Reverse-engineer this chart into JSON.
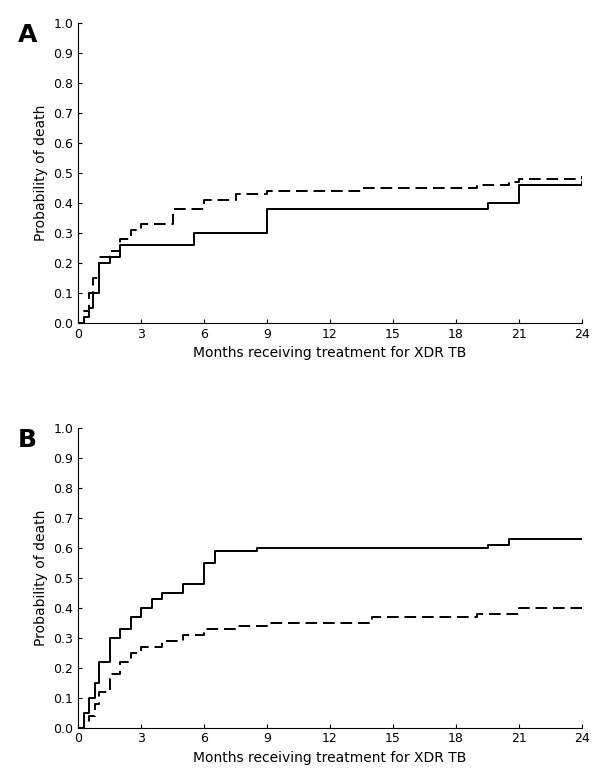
{
  "panel_A": {
    "title": "A",
    "solid_x": [
      0,
      0.3,
      0.5,
      0.7,
      1.0,
      1.5,
      2.0,
      5.5,
      9.0,
      13.5,
      19.5,
      21.0,
      24.0
    ],
    "solid_y": [
      0,
      0.02,
      0.05,
      0.1,
      0.2,
      0.22,
      0.26,
      0.3,
      0.38,
      0.38,
      0.4,
      0.46,
      0.47
    ],
    "dashed_x": [
      0,
      0.3,
      0.5,
      0.7,
      1.0,
      1.5,
      2.0,
      2.5,
      3.0,
      4.5,
      6.0,
      7.5,
      9.0,
      13.5,
      19.0,
      20.5,
      21.0,
      24.0
    ],
    "dashed_y": [
      0,
      0.04,
      0.1,
      0.15,
      0.22,
      0.24,
      0.28,
      0.31,
      0.33,
      0.38,
      0.41,
      0.43,
      0.44,
      0.45,
      0.46,
      0.47,
      0.48,
      0.49
    ],
    "ylabel": "Probability of death",
    "xlabel": "Months receiving treatment for XDR TB",
    "ylim": [
      0,
      1.0
    ],
    "xlim": [
      0,
      24
    ],
    "yticks": [
      0.0,
      0.1,
      0.2,
      0.3,
      0.4,
      0.5,
      0.6,
      0.7,
      0.8,
      0.9,
      1.0
    ],
    "xticks": [
      0,
      3,
      6,
      9,
      12,
      15,
      18,
      21,
      24
    ]
  },
  "panel_B": {
    "title": "B",
    "solid_x": [
      0,
      0.3,
      0.5,
      0.8,
      1.0,
      1.5,
      2.0,
      2.5,
      3.0,
      3.5,
      4.0,
      5.0,
      6.0,
      6.5,
      8.5,
      19.5,
      20.5,
      24.0
    ],
    "solid_y": [
      0,
      0.05,
      0.1,
      0.15,
      0.22,
      0.3,
      0.33,
      0.37,
      0.4,
      0.43,
      0.45,
      0.48,
      0.55,
      0.59,
      0.6,
      0.61,
      0.63,
      0.63
    ],
    "dashed_x": [
      0,
      0.3,
      0.5,
      0.8,
      1.0,
      1.5,
      2.0,
      2.5,
      3.0,
      4.0,
      5.0,
      6.0,
      7.5,
      9.0,
      14.0,
      19.0,
      21.0,
      24.0
    ],
    "dashed_y": [
      0,
      0.02,
      0.04,
      0.08,
      0.12,
      0.18,
      0.22,
      0.25,
      0.27,
      0.29,
      0.31,
      0.33,
      0.34,
      0.35,
      0.37,
      0.38,
      0.4,
      0.4
    ],
    "ylabel": "Probability of death",
    "xlabel": "Months receiving treatment for XDR TB",
    "ylim": [
      0,
      1.0
    ],
    "xlim": [
      0,
      24
    ],
    "yticks": [
      0.0,
      0.1,
      0.2,
      0.3,
      0.4,
      0.5,
      0.6,
      0.7,
      0.8,
      0.9,
      1.0
    ],
    "xticks": [
      0,
      3,
      6,
      9,
      12,
      15,
      18,
      21,
      24
    ]
  },
  "line_color": "#000000",
  "background_color": "#ffffff",
  "label_fontsize": 10,
  "tick_fontsize": 9,
  "panel_label_fontsize": 18,
  "linewidth": 1.4,
  "dashes": [
    6,
    3
  ]
}
